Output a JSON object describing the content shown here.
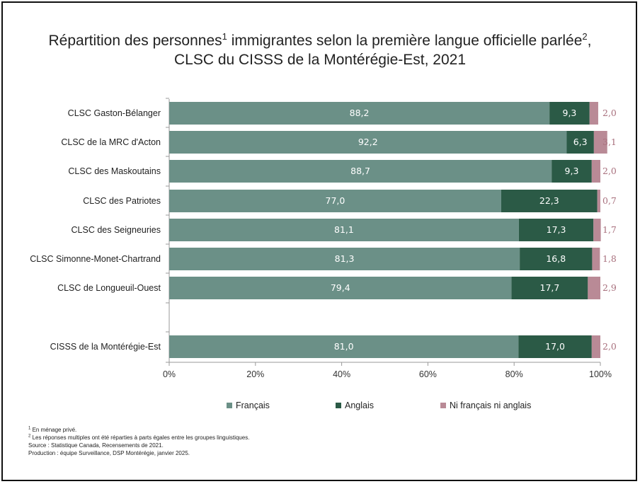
{
  "title": {
    "line1_part1": "Répartition des personnes",
    "line1_sup1": "1",
    "line1_part2": " immigrantes selon la première langue officielle parlée",
    "line1_sup2": "2",
    "line1_part3": ",",
    "line2": "CLSC du CISSS de la Montérégie-Est, 2021"
  },
  "colors": {
    "francais": "#6b9087",
    "anglais": "#2b5a46",
    "ni": "#b98a96",
    "ni_label": "#a8707d"
  },
  "chart_data": {
    "type": "bar",
    "orientation": "horizontal",
    "stacked": true,
    "categories": [
      "CLSC Gaston-Bélanger",
      "CLSC de la MRC d'Acton",
      "CLSC des Maskoutains",
      "CLSC des Patriotes",
      "CLSC des Seigneuries",
      "CLSC Simonne-Monet-Chartrand",
      "CLSC de Longueuil-Ouest",
      "CISSS de la Montérégie-Est"
    ],
    "series": [
      {
        "name": "Français",
        "values": [
          88.2,
          92.2,
          88.7,
          77.0,
          81.1,
          81.3,
          79.4,
          81.0
        ],
        "labels": [
          "88,2",
          "92,2",
          "88,7",
          "77,0",
          "81,1",
          "81,3",
          "79,4",
          "81,0"
        ]
      },
      {
        "name": "Anglais",
        "values": [
          9.3,
          6.3,
          9.3,
          22.3,
          17.3,
          16.8,
          17.7,
          17.0
        ],
        "labels": [
          "9,3",
          "6,3",
          "9,3",
          "22,3",
          "17,3",
          "16,8",
          "17,7",
          "17,0"
        ]
      },
      {
        "name": "Ni français ni anglais",
        "values": [
          2.0,
          3.1,
          2.0,
          0.7,
          1.7,
          1.8,
          2.9,
          2.0
        ],
        "labels": [
          "2,0",
          "3,1",
          "2,0",
          "0,7",
          "1,7",
          "1,8",
          "2,9",
          "2,0"
        ]
      }
    ],
    "xlim": [
      0,
      100
    ],
    "xticks": [
      "0%",
      "20%",
      "40%",
      "60%",
      "80%",
      "100%"
    ],
    "grid": false,
    "legend_position": "bottom"
  },
  "notes": {
    "note1_sup": "1",
    "note1": " En ménage privé.",
    "note2_sup": "2",
    "note2": " Les réponses multiples ont été réparties à parts égales entre les groupes linguistiques.",
    "source": "Source : Statistique Canada, Recensements de 2021.",
    "production": "Production : équipe Surveillance, DSP Montérégie, janvier 2025."
  }
}
